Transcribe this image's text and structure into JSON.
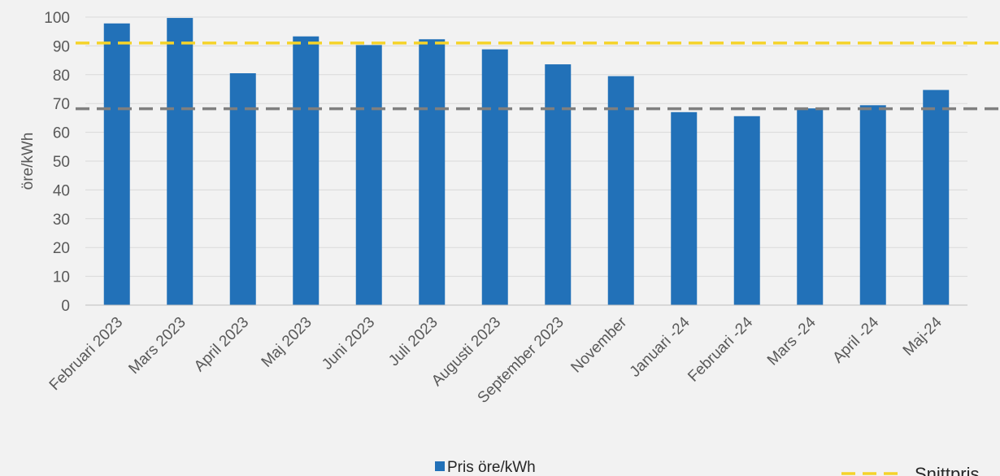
{
  "chart_data": {
    "type": "bar",
    "ylabel": "öre/kWh",
    "xlabel": "",
    "ylim": [
      0,
      100
    ],
    "yticks": [
      0,
      10,
      20,
      30,
      40,
      50,
      60,
      70,
      80,
      90,
      100
    ],
    "grid": true,
    "categories": [
      "Februari 2023",
      "Mars 2023",
      "April 2023",
      "Maj 2023",
      "Juni 2023",
      "Juli 2023",
      "Augusti 2023",
      "September 2023",
      "November",
      "Januari -24",
      "Februari -24",
      "Mars -24",
      "April -24",
      "Maj-24"
    ],
    "series": [
      {
        "name": "Pris öre/kWh",
        "color": "#2271b8",
        "values": [
          97.8,
          99.7,
          80.5,
          93.3,
          90.3,
          92.3,
          88.8,
          83.6,
          79.5,
          67.0,
          65.6,
          68.3,
          69.4,
          74.7
        ]
      }
    ],
    "reference_lines": [
      {
        "name": "Snittpris",
        "value": 91.0,
        "color": "#f5d32a",
        "style": "dashed"
      },
      {
        "name": "",
        "value": 68.2,
        "color": "#7f7f7f",
        "style": "dashed"
      }
    ],
    "legend": {
      "placement": "bottom",
      "bar_label": "Pris öre/kWh",
      "line_label": "Snittpris"
    }
  }
}
